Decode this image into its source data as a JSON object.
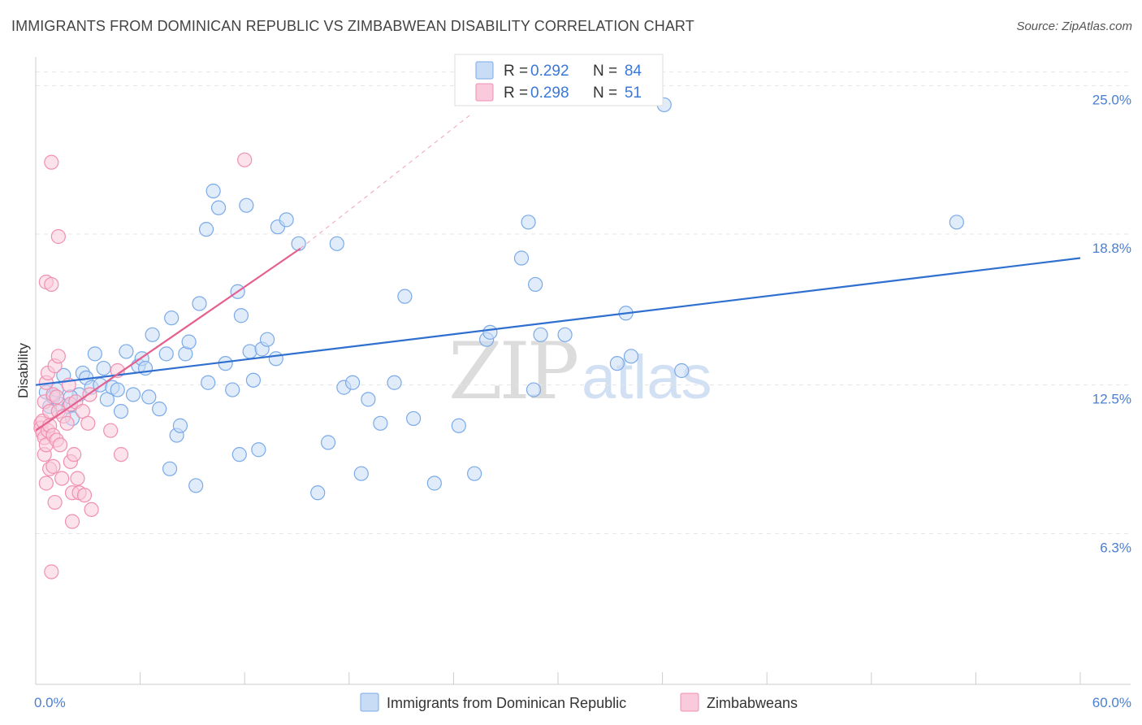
{
  "header": {
    "title": "IMMIGRANTS FROM DOMINICAN REPUBLIC VS ZIMBABWEAN DISABILITY CORRELATION CHART",
    "source": "Source: ZipAtlas.com"
  },
  "watermark": {
    "zip": "ZIP",
    "atlas": "atlas"
  },
  "legend_top": [
    {
      "r_label": "R =",
      "r_value": "0.292",
      "n_label": "N =",
      "n_value": "84",
      "color": "#7aaae8",
      "fill": "#c9dcf6"
    },
    {
      "r_label": "R =",
      "r_value": "0.298",
      "n_label": "N =",
      "n_value": "51",
      "color": "#f090b0",
      "fill": "#f9cadb"
    }
  ],
  "chart_data": {
    "type": "scatter",
    "title": "IMMIGRANTS FROM DOMINICAN REPUBLIC VS ZIMBABWEAN DISABILITY CORRELATION CHART",
    "xlabel": "",
    "ylabel": "Disability",
    "xlim": [
      0,
      60
    ],
    "ylim": [
      0,
      26.2
    ],
    "x_tick_labels": [
      "0.0%",
      "60.0%"
    ],
    "y_ticks": [
      6.3,
      12.5,
      18.8,
      25.0
    ],
    "y_tick_labels": [
      "6.3%",
      "12.5%",
      "18.8%",
      "25.0%"
    ],
    "grid": "horizontal dashed",
    "legend_position": "bottom",
    "series": [
      {
        "name": "Immigrants from Dominican Republic",
        "color": "#7aaae8",
        "fill": "#c9dcf6",
        "trend": {
          "x": [
            0,
            60
          ],
          "y": [
            12.5,
            17.8
          ],
          "style": "solid",
          "color": "#2f6fd0"
        },
        "points": [
          [
            0.6,
            12.2
          ],
          [
            0.8,
            11.6
          ],
          [
            1.0,
            12.0
          ],
          [
            1.2,
            12.3
          ],
          [
            1.4,
            11.7
          ],
          [
            1.6,
            12.9
          ],
          [
            1.9,
            11.6
          ],
          [
            2.1,
            11.1
          ],
          [
            2.5,
            12.1
          ],
          [
            2.7,
            13.0
          ],
          [
            2.9,
            12.8
          ],
          [
            3.2,
            12.4
          ],
          [
            3.4,
            13.8
          ],
          [
            3.7,
            12.5
          ],
          [
            3.9,
            13.2
          ],
          [
            4.1,
            11.9
          ],
          [
            4.4,
            12.4
          ],
          [
            4.7,
            12.3
          ],
          [
            4.9,
            11.4
          ],
          [
            5.2,
            13.9
          ],
          [
            5.6,
            12.1
          ],
          [
            5.9,
            13.3
          ],
          [
            6.1,
            13.6
          ],
          [
            6.3,
            13.2
          ],
          [
            6.5,
            12.0
          ],
          [
            6.7,
            14.6
          ],
          [
            7.1,
            11.5
          ],
          [
            7.5,
            13.8
          ],
          [
            7.7,
            9.0
          ],
          [
            7.8,
            15.3
          ],
          [
            8.1,
            10.4
          ],
          [
            8.3,
            10.8
          ],
          [
            8.6,
            13.8
          ],
          [
            8.8,
            14.3
          ],
          [
            9.2,
            8.3
          ],
          [
            9.4,
            15.9
          ],
          [
            9.8,
            19.0
          ],
          [
            9.9,
            12.6
          ],
          [
            10.2,
            20.6
          ],
          [
            10.5,
            19.9
          ],
          [
            10.9,
            13.4
          ],
          [
            11.3,
            12.3
          ],
          [
            11.6,
            16.4
          ],
          [
            11.7,
            9.6
          ],
          [
            11.8,
            15.4
          ],
          [
            12.1,
            20.0
          ],
          [
            12.3,
            13.9
          ],
          [
            12.5,
            12.7
          ],
          [
            12.8,
            9.8
          ],
          [
            13.0,
            14.0
          ],
          [
            13.3,
            14.4
          ],
          [
            13.8,
            13.6
          ],
          [
            13.9,
            19.1
          ],
          [
            14.4,
            19.4
          ],
          [
            15.1,
            18.4
          ],
          [
            16.2,
            8.0
          ],
          [
            16.8,
            10.1
          ],
          [
            17.3,
            18.4
          ],
          [
            17.7,
            12.4
          ],
          [
            18.2,
            12.6
          ],
          [
            18.7,
            8.8
          ],
          [
            19.1,
            11.9
          ],
          [
            19.8,
            10.9
          ],
          [
            20.6,
            12.6
          ],
          [
            21.2,
            16.2
          ],
          [
            21.7,
            11.1
          ],
          [
            22.9,
            8.4
          ],
          [
            24.3,
            10.8
          ],
          [
            25.2,
            8.8
          ],
          [
            25.9,
            14.4
          ],
          [
            26.1,
            14.7
          ],
          [
            27.9,
            17.8
          ],
          [
            28.3,
            19.3
          ],
          [
            28.6,
            12.3
          ],
          [
            28.7,
            16.7
          ],
          [
            29.0,
            14.6
          ],
          [
            30.4,
            14.6
          ],
          [
            33.4,
            13.4
          ],
          [
            33.9,
            15.5
          ],
          [
            34.2,
            13.7
          ],
          [
            36.1,
            24.2
          ],
          [
            37.1,
            13.1
          ],
          [
            52.9,
            19.3
          ],
          [
            2.0,
            12.0
          ]
        ]
      },
      {
        "name": "Zimbabweans",
        "color": "#f090b0",
        "fill": "#f9cadb",
        "trend": {
          "x": [
            0,
            15.2
          ],
          "y": [
            10.6,
            18.2
          ],
          "style": "solid",
          "color": "#e6608f",
          "extension": {
            "x": [
              15.2,
              25.0
            ],
            "y": [
              18.2,
              23.8
            ],
            "style": "dashed"
          }
        },
        "points": [
          [
            0.3,
            10.9
          ],
          [
            0.3,
            10.7
          ],
          [
            0.4,
            10.5
          ],
          [
            0.4,
            11.0
          ],
          [
            0.5,
            10.3
          ],
          [
            0.5,
            11.8
          ],
          [
            0.5,
            9.6
          ],
          [
            0.6,
            12.6
          ],
          [
            0.6,
            10.0
          ],
          [
            0.6,
            8.4
          ],
          [
            0.6,
            16.8
          ],
          [
            0.7,
            10.6
          ],
          [
            0.7,
            13.0
          ],
          [
            0.8,
            11.4
          ],
          [
            0.8,
            9.0
          ],
          [
            0.8,
            10.8
          ],
          [
            0.9,
            4.7
          ],
          [
            0.9,
            16.7
          ],
          [
            0.9,
            21.8
          ],
          [
            1.0,
            12.1
          ],
          [
            1.0,
            10.4
          ],
          [
            1.0,
            9.1
          ],
          [
            1.1,
            7.6
          ],
          [
            1.1,
            13.3
          ],
          [
            1.2,
            10.2
          ],
          [
            1.2,
            12.0
          ],
          [
            1.3,
            13.7
          ],
          [
            1.3,
            18.7
          ],
          [
            1.3,
            11.4
          ],
          [
            1.4,
            10.0
          ],
          [
            1.5,
            8.6
          ],
          [
            1.6,
            11.2
          ],
          [
            1.8,
            10.9
          ],
          [
            1.9,
            12.5
          ],
          [
            2.0,
            11.7
          ],
          [
            2.0,
            9.3
          ],
          [
            2.1,
            6.8
          ],
          [
            2.1,
            8.0
          ],
          [
            2.2,
            9.6
          ],
          [
            2.3,
            11.8
          ],
          [
            2.4,
            8.6
          ],
          [
            2.5,
            8.0
          ],
          [
            2.7,
            11.4
          ],
          [
            2.8,
            7.9
          ],
          [
            3.0,
            10.9
          ],
          [
            3.1,
            12.1
          ],
          [
            3.2,
            7.3
          ],
          [
            4.3,
            10.6
          ],
          [
            4.7,
            13.1
          ],
          [
            4.9,
            9.6
          ],
          [
            12.0,
            21.9
          ]
        ]
      }
    ]
  }
}
